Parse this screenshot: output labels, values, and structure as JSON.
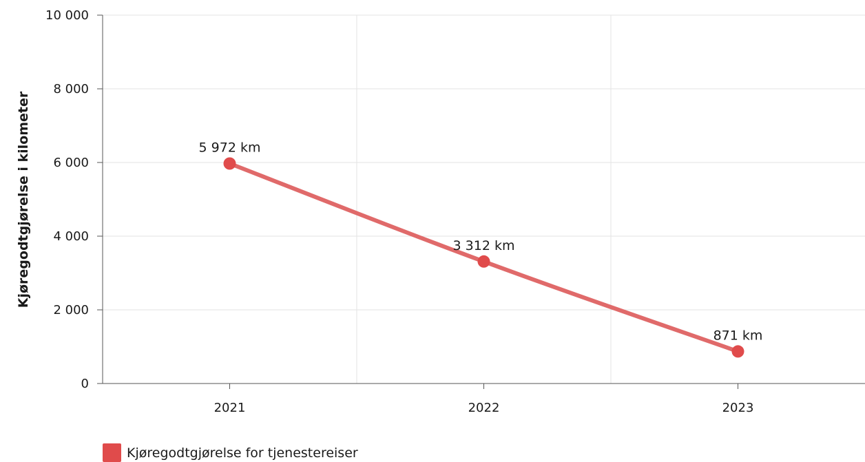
{
  "chart_data": {
    "type": "line",
    "title": "",
    "xlabel": "",
    "ylabel": "Kjøregodtgjørelse i kilometer",
    "categories": [
      "2021",
      "2022",
      "2023"
    ],
    "series": [
      {
        "name": "Kjøregodtgjørelse for tjenestereiser",
        "values": [
          5972,
          3312,
          871
        ],
        "data_labels": [
          "5 972 km",
          "3 312 km",
          "871 km"
        ],
        "color": "#e04b4b",
        "line_color": "#e06a6a"
      }
    ],
    "ylim": [
      0,
      10000
    ],
    "y_ticks": [
      0,
      2000,
      4000,
      6000,
      8000,
      10000
    ],
    "y_tick_labels": [
      "0",
      "2 000",
      "4 000",
      "6 000",
      "8 000",
      "10 000"
    ],
    "grid": true,
    "smooth": true,
    "legend_position": "bottom-left"
  }
}
